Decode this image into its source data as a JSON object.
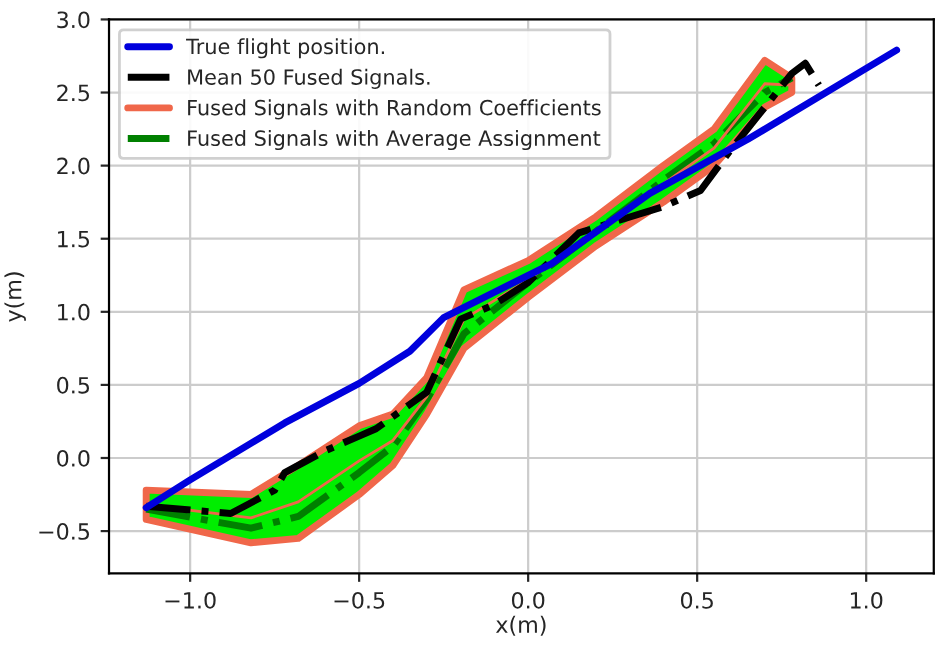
{
  "chart_data": {
    "type": "line",
    "xlabel": "x(m)",
    "ylabel": "y(m)",
    "xlim": [
      -1.24,
      1.2
    ],
    "ylim": [
      -0.79,
      3.0
    ],
    "xticks": [
      {
        "value": -1.0,
        "label": "−1.0"
      },
      {
        "value": -0.5,
        "label": "−0.5"
      },
      {
        "value": 0.0,
        "label": "0.0"
      },
      0.5,
      {
        "value": 1.0,
        "label": "1.0"
      }
    ],
    "yticks": [
      {
        "value": -0.5,
        "label": "−0.5"
      },
      {
        "value": 0.0,
        "label": "0.0"
      },
      0.5,
      {
        "value": 1.0,
        "label": "1.0"
      },
      1.5,
      {
        "value": 2.0,
        "label": "2.0"
      },
      2.5,
      {
        "value": 3.0,
        "label": "3.0"
      }
    ],
    "grid": true,
    "legend": "top left",
    "series": [
      {
        "name": "True flight position.",
        "color": "#0000dd",
        "line_style": "solid",
        "x": [
          -1.13,
          -1.0,
          -0.72,
          -0.5,
          -0.35,
          -0.25,
          0.07,
          0.36,
          0.65,
          1.09
        ],
        "values": [
          -0.34,
          -0.15,
          0.24,
          0.51,
          0.73,
          0.96,
          1.33,
          1.81,
          2.18,
          2.79
        ]
      },
      {
        "name": "Mean 50 Fused Signals.",
        "color": "#000000",
        "line_style": "dashdot",
        "x": [
          -1.13,
          -0.88,
          -0.75,
          -0.72,
          -0.6,
          -0.5,
          -0.45,
          -0.3,
          -0.2,
          -0.1,
          0,
          0.15,
          0.4,
          0.51,
          0.6,
          0.78,
          0.82,
          0.86
        ],
        "values": [
          -0.33,
          -0.38,
          -0.22,
          -0.1,
          0.05,
          0.15,
          0.2,
          0.45,
          0.95,
          1.05,
          1.2,
          1.54,
          1.72,
          1.83,
          2.11,
          2.63,
          2.7,
          2.55
        ]
      },
      {
        "name": "Fused Signals with Random Coefficients",
        "color": "#f0674a",
        "line_style": "solid",
        "x": [
          -1.13,
          -0.82,
          -0.68,
          -0.5,
          -0.4,
          -0.3,
          -0.19,
          0,
          0.2,
          0.4,
          0.55,
          0.7,
          0.78
        ],
        "values": [
          -0.32,
          -0.41,
          -0.3,
          -0.02,
          0.12,
          0.42,
          0.95,
          1.22,
          1.55,
          null,
          2.12,
          2.56,
          2.55
        ],
        "lower": [
          -0.42,
          -0.58,
          -0.55,
          -0.25,
          -0.05,
          0.3,
          0.75,
          1.1,
          1.45,
          1.75,
          2.0,
          2.4,
          2.5
        ],
        "upper": [
          -0.22,
          -0.25,
          -0.05,
          0.22,
          0.3,
          0.55,
          1.15,
          1.35,
          1.65,
          2.0,
          2.25,
          2.72,
          2.6
        ]
      },
      {
        "name": "Fused Signals with Average Assignment",
        "color": "#008000",
        "line_style": "dashdot",
        "x": [
          -1.13,
          -0.82,
          -0.68,
          -0.5,
          -0.4,
          -0.3,
          -0.19,
          0,
          0.2,
          0.4,
          0.55,
          0.7,
          0.78
        ],
        "values": [
          -0.35,
          -0.48,
          -0.4,
          -0.1,
          0.08,
          0.4,
          0.85,
          1.2,
          1.55,
          1.9,
          2.15,
          2.5,
          2.6
        ]
      }
    ]
  }
}
